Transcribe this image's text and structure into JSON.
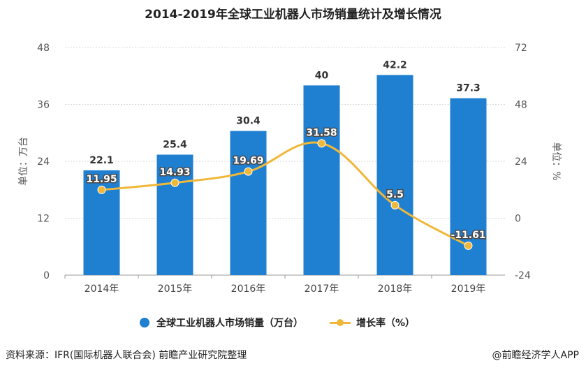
{
  "chart_data": {
    "type": "bar+line",
    "title": "2014-2019年全球工业机器人市场销量统计及增长情况",
    "categories": [
      "2014年",
      "2015年",
      "2016年",
      "2017年",
      "2018年",
      "2019年"
    ],
    "series": [
      {
        "name": "全球工业机器人市场销量（万台）",
        "type": "bar",
        "axis": "left",
        "color": "#1f7fd0",
        "values": [
          22.1,
          25.4,
          30.4,
          40,
          42.2,
          37.3
        ],
        "labels": [
          "22.1",
          "25.4",
          "30.4",
          "40",
          "42.2",
          "37.3"
        ]
      },
      {
        "name": "增长率（%）",
        "type": "line",
        "axis": "right",
        "color": "#f0b83a",
        "values": [
          11.95,
          14.93,
          19.69,
          31.58,
          5.5,
          -11.61
        ],
        "labels": [
          "11.95",
          "14.93",
          "19.69",
          "31.58",
          "5.5",
          "-11.61"
        ]
      }
    ],
    "ylabel_left": "单位：万台",
    "ylabel_right": "单位：%",
    "ylim_left": [
      0,
      48
    ],
    "yticks_left": [
      "0",
      "12",
      "24",
      "36",
      "48"
    ],
    "ylim_right": [
      -24,
      72
    ],
    "yticks_right": [
      "-24",
      "0",
      "24",
      "48",
      "72"
    ],
    "grid": true,
    "legend_position": "bottom"
  },
  "footer": {
    "source": "资料来源：IFR(国际机器人联合会) 前瞻产业研究院整理",
    "brand": "@前瞻经济学人APP"
  },
  "legend": {
    "bar_label": "全球工业机器人市场销量（万台）",
    "line_label": "增长率（%）"
  }
}
